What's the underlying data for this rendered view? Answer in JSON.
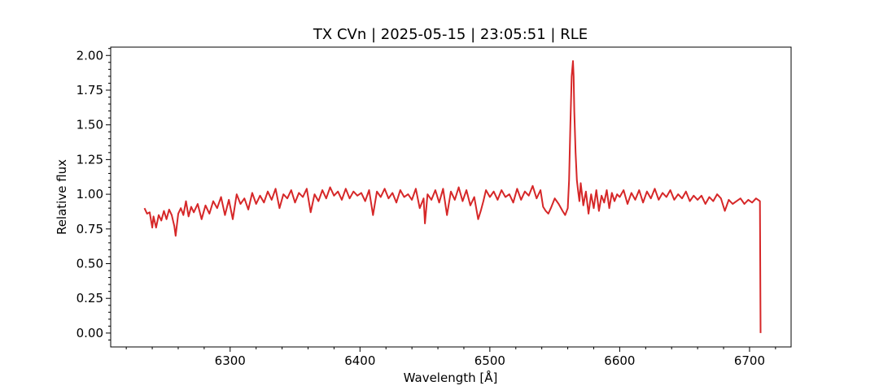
{
  "chart_data": {
    "type": "line",
    "title": "TX CVn | 2025-05-15 | 23:05:51 | RLE",
    "xlabel": "Wavelength [Å]",
    "ylabel": "Relative flux",
    "xlim": [
      6208,
      6732
    ],
    "ylim": [
      -0.1,
      2.06
    ],
    "x_ticks": [
      6300,
      6400,
      6500,
      6600,
      6700
    ],
    "x_tick_labels": [
      "6300",
      "6400",
      "6500",
      "6600",
      "6700"
    ],
    "y_ticks": [
      0.0,
      0.25,
      0.5,
      0.75,
      1.0,
      1.25,
      1.5,
      1.75,
      2.0
    ],
    "y_tick_labels": [
      "0.00",
      "0.25",
      "0.50",
      "0.75",
      "1.00",
      "1.25",
      "1.50",
      "1.75",
      "2.00"
    ],
    "grid": false,
    "color": "#d62728",
    "series": [
      {
        "x": [
          6234,
          6236,
          6238,
          6240,
          6241,
          6243,
          6245,
          6247,
          6249,
          6251,
          6253,
          6255,
          6257,
          6258,
          6260,
          6262,
          6264,
          6266,
          6268,
          6270,
          6272,
          6275,
          6278,
          6281,
          6284,
          6287,
          6290,
          6293,
          6296,
          6299,
          6302,
          6305,
          6308,
          6311,
          6314,
          6317,
          6320,
          6323,
          6326,
          6329,
          6332,
          6335,
          6338,
          6341,
          6344,
          6347,
          6350,
          6353,
          6356,
          6359,
          6362,
          6365,
          6368,
          6371,
          6374,
          6377,
          6380,
          6383,
          6386,
          6389,
          6392,
          6395,
          6398,
          6401,
          6404,
          6407,
          6410,
          6413,
          6416,
          6419,
          6422,
          6425,
          6428,
          6431,
          6434,
          6437,
          6440,
          6443,
          6446,
          6449,
          6450,
          6452,
          6455,
          6458,
          6461,
          6464,
          6467,
          6470,
          6473,
          6476,
          6479,
          6482,
          6485,
          6488,
          6491,
          6493,
          6495,
          6497,
          6500,
          6503,
          6506,
          6509,
          6512,
          6515,
          6518,
          6521,
          6524,
          6527,
          6530,
          6533,
          6536,
          6539,
          6541,
          6543,
          6545,
          6547,
          6550,
          6553,
          6556,
          6558,
          6560,
          6561,
          6562,
          6563,
          6564,
          6564.5,
          6565,
          6566,
          6567,
          6568,
          6569,
          6570,
          6572,
          6574,
          6576,
          6578,
          6580,
          6582,
          6584,
          6586,
          6588,
          6590,
          6592,
          6594,
          6596,
          6598,
          6600,
          6603,
          6606,
          6609,
          6612,
          6615,
          6618,
          6621,
          6624,
          6627,
          6630,
          6633,
          6636,
          6639,
          6642,
          6645,
          6648,
          6651,
          6654,
          6657,
          6660,
          6663,
          6666,
          6669,
          6672,
          6675,
          6678,
          6681,
          6684,
          6687,
          6690,
          6693,
          6696,
          6699,
          6702,
          6705,
          6708,
          6708.5
        ],
        "y": [
          0.9,
          0.86,
          0.87,
          0.76,
          0.84,
          0.76,
          0.85,
          0.81,
          0.88,
          0.82,
          0.89,
          0.85,
          0.77,
          0.7,
          0.86,
          0.9,
          0.85,
          0.95,
          0.84,
          0.91,
          0.87,
          0.93,
          0.82,
          0.92,
          0.86,
          0.95,
          0.9,
          0.98,
          0.85,
          0.96,
          0.82,
          1.0,
          0.93,
          0.97,
          0.89,
          1.01,
          0.93,
          0.99,
          0.94,
          1.02,
          0.96,
          1.04,
          0.9,
          1.0,
          0.97,
          1.03,
          0.94,
          1.01,
          0.98,
          1.04,
          0.87,
          1.0,
          0.95,
          1.03,
          0.97,
          1.05,
          0.99,
          1.02,
          0.96,
          1.04,
          0.97,
          1.02,
          0.99,
          1.01,
          0.95,
          1.03,
          0.85,
          1.02,
          0.98,
          1.04,
          0.97,
          1.01,
          0.94,
          1.03,
          0.98,
          1.0,
          0.96,
          1.04,
          0.9,
          0.97,
          0.79,
          1.0,
          0.96,
          1.03,
          0.94,
          1.04,
          0.85,
          1.02,
          0.96,
          1.05,
          0.95,
          1.03,
          0.92,
          0.98,
          0.82,
          0.88,
          0.95,
          1.03,
          0.98,
          1.02,
          0.96,
          1.03,
          0.98,
          1.0,
          0.94,
          1.04,
          0.96,
          1.02,
          0.99,
          1.06,
          0.97,
          1.03,
          0.91,
          0.88,
          0.86,
          0.9,
          0.97,
          0.93,
          0.88,
          0.85,
          0.9,
          1.1,
          1.5,
          1.85,
          1.96,
          1.85,
          1.6,
          1.3,
          1.1,
          1.02,
          0.95,
          1.08,
          0.92,
          1.02,
          0.86,
          1.0,
          0.9,
          1.03,
          0.88,
          0.99,
          0.94,
          1.03,
          0.9,
          1.01,
          0.95,
          1.0,
          0.98,
          1.03,
          0.93,
          1.01,
          0.96,
          1.03,
          0.94,
          1.02,
          0.97,
          1.04,
          0.96,
          1.01,
          0.98,
          1.03,
          0.96,
          1.0,
          0.97,
          1.02,
          0.95,
          0.99,
          0.96,
          0.99,
          0.93,
          0.98,
          0.95,
          1.0,
          0.97,
          0.88,
          0.96,
          0.93,
          0.95,
          0.97,
          0.93,
          0.96,
          0.94,
          0.97,
          0.95,
          0.0
        ]
      }
    ]
  }
}
